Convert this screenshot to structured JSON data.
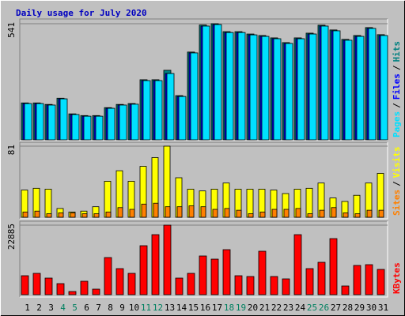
{
  "title": "Daily usage for July 2020",
  "legend_separator": "/",
  "chart_data": [
    {
      "type": "bar",
      "series": [
        {
          "name": "Hits",
          "color": "#008080",
          "values": [
            172,
            172,
            165,
            194,
            121,
            113,
            113,
            150,
            165,
            169,
            280,
            280,
            324,
            206,
            409,
            535,
            541,
            504,
            504,
            493,
            486,
            475,
            453,
            475,
            497,
            534,
            512,
            468,
            486,
            523,
            490
          ]
        },
        {
          "name": "Files",
          "color": "#0000ff",
          "values": [
            169,
            169,
            162,
            191,
            118,
            110,
            110,
            147,
            162,
            166,
            276,
            276,
            309,
            202,
            405,
            530,
            537,
            500,
            500,
            489,
            482,
            471,
            449,
            471,
            493,
            530,
            508,
            464,
            482,
            519,
            486
          ]
        },
        {
          "name": "Pages",
          "color": "#00e0ff",
          "values": [
            169,
            169,
            162,
            191,
            118,
            110,
            110,
            147,
            162,
            166,
            276,
            276,
            309,
            202,
            405,
            530,
            537,
            500,
            500,
            489,
            482,
            471,
            449,
            471,
            493,
            530,
            508,
            464,
            482,
            519,
            486
          ]
        }
      ],
      "ylim": [
        0,
        541
      ],
      "yticks": [
        541
      ],
      "grid": true
    },
    {
      "type": "bar",
      "series": [
        {
          "name": "Visits",
          "color": "#ffff00",
          "values": [
            31,
            33,
            32,
            10,
            6,
            7,
            12,
            41,
            53,
            41,
            58,
            68,
            81,
            45,
            32,
            30,
            32,
            39,
            32,
            32,
            32,
            31,
            27,
            32,
            33,
            39,
            22,
            18,
            25,
            39,
            50
          ]
        },
        {
          "name": "Sites",
          "color": "#ff8000",
          "values": [
            6,
            7,
            4,
            5,
            5,
            4,
            4,
            6,
            11,
            9,
            15,
            16,
            12,
            12,
            13,
            12,
            9,
            10,
            8,
            4,
            6,
            9,
            9,
            10,
            4,
            8,
            11,
            5,
            4,
            8,
            8
          ]
        }
      ],
      "ylim": [
        0,
        81
      ],
      "yticks": [
        81
      ],
      "grid": true
    },
    {
      "type": "bar",
      "categories": [
        "1",
        "2",
        "3",
        "4",
        "5",
        "6",
        "7",
        "8",
        "9",
        "10",
        "11",
        "12",
        "13",
        "14",
        "15",
        "16",
        "17",
        "18",
        "19",
        "20",
        "21",
        "22",
        "23",
        "24",
        "25",
        "26",
        "27",
        "28",
        "29",
        "30",
        "31"
      ],
      "category_colors": [
        "#000000",
        "#000000",
        "#000000",
        "#008060",
        "#008060",
        "#000000",
        "#000000",
        "#000000",
        "#000000",
        "#000000",
        "#008060",
        "#008060",
        "#000000",
        "#000000",
        "#000000",
        "#000000",
        "#000000",
        "#008060",
        "#008060",
        "#000000",
        "#000000",
        "#000000",
        "#000000",
        "#000000",
        "#008060",
        "#008060",
        "#000000",
        "#000000",
        "#000000",
        "#000000",
        "#000000"
      ],
      "series": [
        {
          "name": "KBytes",
          "color": "#ff0000",
          "values": [
            6240,
            7020,
            5460,
            3640,
            1040,
            4420,
            1820,
            12220,
            8580,
            7020,
            16120,
            19760,
            22885,
            5460,
            7020,
            12740,
            11700,
            14820,
            6240,
            5980,
            14300,
            5980,
            5200,
            19760,
            8580,
            10660,
            18460,
            2860,
            9620,
            9880,
            8320
          ]
        }
      ],
      "ylim": [
        0,
        22885
      ],
      "yticks": [
        22885
      ],
      "grid": true
    }
  ]
}
